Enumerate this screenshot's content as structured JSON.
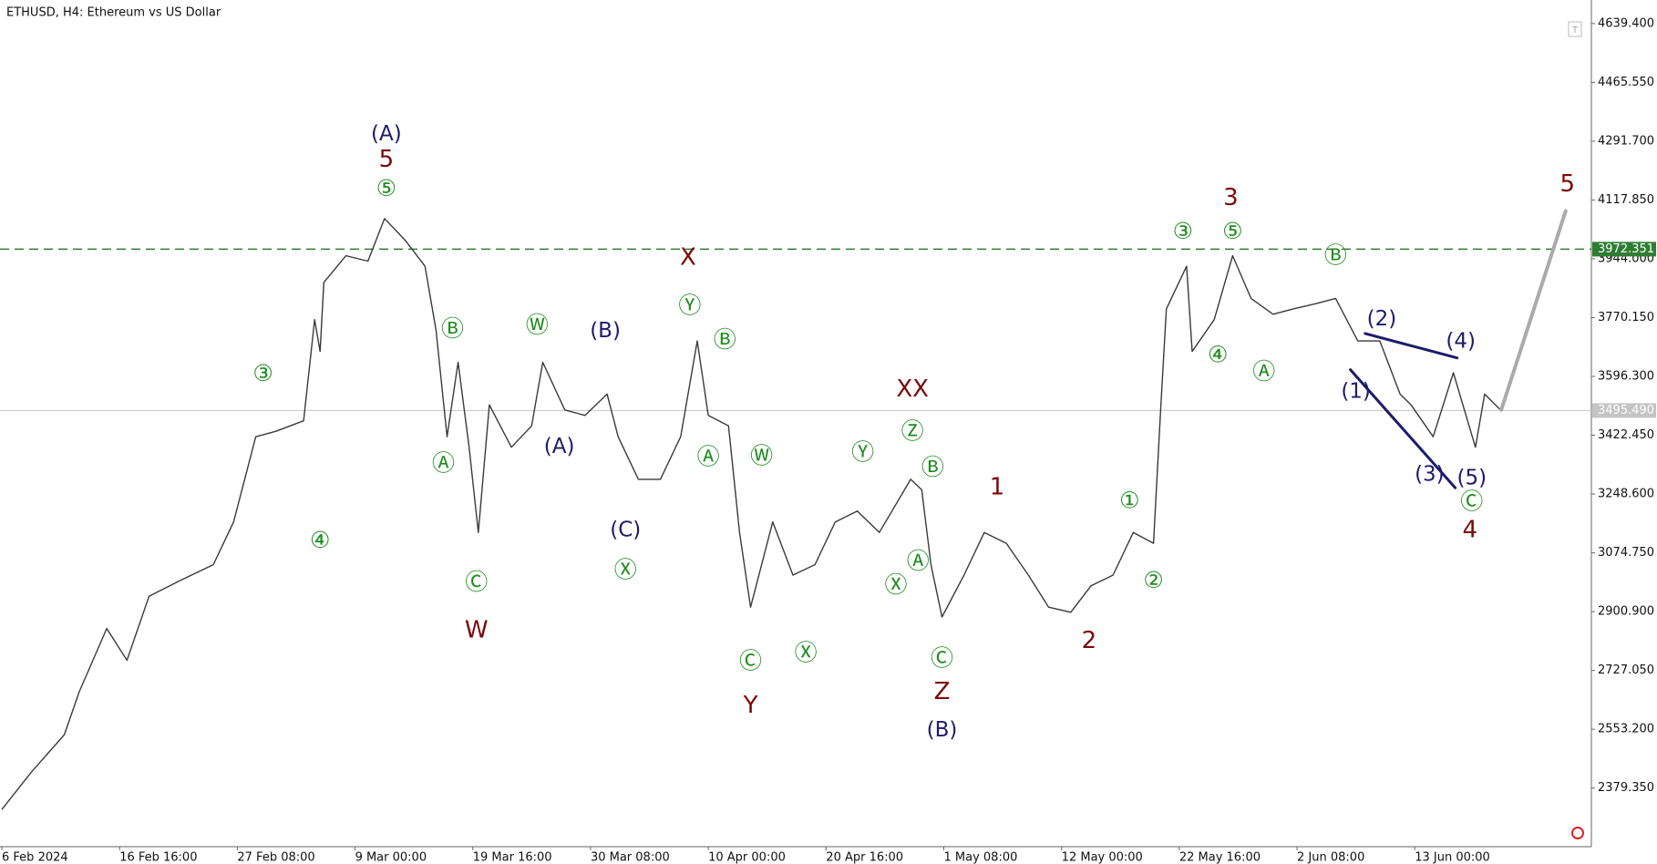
{
  "chart_data": {
    "type": "line",
    "title": "ETHUSD, H4:  Ethereum vs US Dollar",
    "xlim": [
      -1,
      864
    ],
    "xticks": [
      {
        "value": 0,
        "label": "6 Feb 2024"
      },
      {
        "value": 64,
        "label": "16 Feb 16:00"
      },
      {
        "value": 128,
        "label": "27 Feb 08:00"
      },
      {
        "value": 192,
        "label": "9 Mar 00:00"
      },
      {
        "value": 256,
        "label": "19 Mar 16:00"
      },
      {
        "value": 320,
        "label": "30 Mar 08:00"
      },
      {
        "value": 384,
        "label": "10 Apr 00:00"
      },
      {
        "value": 448,
        "label": "20 Apr 16:00"
      },
      {
        "value": 512,
        "label": "1 May 08:00"
      },
      {
        "value": 576,
        "label": "12 May 00:00"
      },
      {
        "value": 640,
        "label": "22 May 16:00"
      },
      {
        "value": 704,
        "label": "2 Jun 08:00"
      },
      {
        "value": 768,
        "label": "13 Jun 00:00"
      }
    ],
    "ylim": [
      2206,
      4709
    ],
    "yticks": [
      {
        "value": 4639.4,
        "label": "4639.400"
      },
      {
        "value": 4465.55,
        "label": "4465.550"
      },
      {
        "value": 4291.7,
        "label": "4291.700"
      },
      {
        "value": 4117.85,
        "label": "4117.850"
      },
      {
        "value": 3944,
        "label": "3944.000"
      },
      {
        "value": 3770.15,
        "label": "3770.150"
      },
      {
        "value": 3596.3,
        "label": "3596.300"
      },
      {
        "value": 3422.45,
        "label": "3422.450"
      },
      {
        "value": 3248.6,
        "label": "3248.600"
      },
      {
        "value": 3074.75,
        "label": "3074.750"
      },
      {
        "value": 2900.9,
        "label": "2900.900"
      },
      {
        "value": 2727.05,
        "label": "2727.050"
      },
      {
        "value": 2553.2,
        "label": "2553.200"
      },
      {
        "value": 2379.35,
        "label": "2379.350"
      }
    ],
    "series": [
      {
        "color": "#3a3a3a",
        "x": [
          0,
          16,
          34,
          42,
          57,
          68,
          80,
          97,
          115,
          126,
          138,
          149,
          164,
          170,
          173,
          175,
          187,
          199,
          208,
          219,
          230,
          236,
          242,
          248,
          254,
          259,
          265,
          277,
          288,
          294,
          306,
          317,
          329,
          335,
          346,
          358,
          369,
          378,
          384,
          395,
          401,
          407,
          419,
          430,
          442,
          453,
          465,
          477,
          494,
          500,
          505,
          511,
          523,
          534,
          546,
          558,
          569,
          581,
          592,
          604,
          615,
          626,
          630,
          633,
          644,
          647,
          659,
          669,
          679,
          691,
          702,
          714,
          725,
          737,
          749,
          760,
          766,
          778,
          789,
          801,
          806,
          815
        ],
        "values": [
          2316,
          2426,
          2537,
          2663,
          2851,
          2757,
          2946,
          2993,
          3040,
          3166,
          3418,
          3434,
          3465,
          3764,
          3670,
          3874,
          3953,
          3937,
          4063,
          4000,
          3922,
          3733,
          3418,
          3638,
          3387,
          3135,
          3512,
          3387,
          3450,
          3638,
          3497,
          3481,
          3544,
          3418,
          3292,
          3292,
          3418,
          3701,
          3481,
          3450,
          3135,
          2914,
          3166,
          3009,
          3040,
          3166,
          3198,
          3135,
          3292,
          3261,
          3040,
          2885,
          3009,
          3135,
          3103,
          3009,
          2914,
          2899,
          2977,
          3009,
          3135,
          3103,
          3512,
          3796,
          3922,
          3670,
          3764,
          3953,
          3827,
          3780,
          3796,
          3811,
          3827,
          3701,
          3701,
          3544,
          3512,
          3418,
          3607,
          3387,
          3544,
          3495
        ]
      }
    ],
    "price_lines": [
      {
        "value": 3972.351,
        "label": "3972.351",
        "color": "#2e7d32",
        "style": "dashed"
      },
      {
        "value": 3495.49,
        "label": "3495.490",
        "color": "#c4c4c4",
        "style": "solid"
      }
    ],
    "trend_lines": [
      {
        "x": [
          741,
          791
        ],
        "values": [
          3723,
          3651
        ],
        "color": "#1c1c6b"
      },
      {
        "x": [
          733,
          790
        ],
        "values": [
          3616,
          3267
        ],
        "color": "#1c1c6b"
      },
      {
        "x": [
          815,
          850
        ],
        "values": [
          3497,
          4085
        ],
        "color": "#aaaaaa"
      }
    ],
    "annotations": [
      {
        "text": "(A)",
        "x": 209,
        "y": 4312,
        "color": "#1c1c6b"
      },
      {
        "text": "5",
        "x": 209,
        "y": 4236,
        "color": "#7a0a0a"
      },
      {
        "text": "⑤",
        "x": 209,
        "y": 4148,
        "color": "#1e8c1e"
      },
      {
        "text": "③",
        "x": 142,
        "y": 3601,
        "color": "#1e8c1e"
      },
      {
        "text": "④",
        "x": 173,
        "y": 3109,
        "color": "#1e8c1e"
      },
      {
        "text": "Ⓑ",
        "x": 245,
        "y": 3733,
        "color": "#1e8c1e"
      },
      {
        "text": "Ⓐ",
        "x": 240,
        "y": 3336,
        "color": "#1e8c1e"
      },
      {
        "text": "Ⓒ",
        "x": 258,
        "y": 2984,
        "color": "#1e8c1e"
      },
      {
        "text": "W",
        "x": 258,
        "y": 2845,
        "color": "#7a0a0a"
      },
      {
        "text": "Ⓦ",
        "x": 291,
        "y": 3745,
        "color": "#1e8c1e"
      },
      {
        "text": "(A)",
        "x": 303,
        "y": 3387,
        "color": "#1c1c6b"
      },
      {
        "text": "(B)",
        "x": 328,
        "y": 3730,
        "color": "#1c1c6b"
      },
      {
        "text": "(C)",
        "x": 339,
        "y": 3141,
        "color": "#1c1c6b"
      },
      {
        "text": "Ⓧ",
        "x": 339,
        "y": 3021,
        "color": "#1e8c1e"
      },
      {
        "text": "X",
        "x": 373,
        "y": 3947,
        "color": "#7a0a0a"
      },
      {
        "text": "Ⓨ",
        "x": 374,
        "y": 3802,
        "color": "#1e8c1e"
      },
      {
        "text": "Ⓑ",
        "x": 393,
        "y": 3701,
        "color": "#1e8c1e"
      },
      {
        "text": "Ⓐ",
        "x": 384,
        "y": 3355,
        "color": "#1e8c1e"
      },
      {
        "text": "Ⓦ",
        "x": 413,
        "y": 3358,
        "color": "#1e8c1e"
      },
      {
        "text": "Ⓒ",
        "x": 407,
        "y": 2751,
        "color": "#1e8c1e"
      },
      {
        "text": "Y",
        "x": 407,
        "y": 2622,
        "color": "#7a0a0a"
      },
      {
        "text": "Ⓧ",
        "x": 437,
        "y": 2776,
        "color": "#1e8c1e"
      },
      {
        "text": "Ⓨ",
        "x": 468,
        "y": 3368,
        "color": "#1e8c1e"
      },
      {
        "text": "XX",
        "x": 495,
        "y": 3557,
        "color": "#7a0a0a"
      },
      {
        "text": "Ⓩ",
        "x": 495,
        "y": 3431,
        "color": "#1e8c1e"
      },
      {
        "text": "Ⓑ",
        "x": 506,
        "y": 3324,
        "color": "#1e8c1e"
      },
      {
        "text": "Ⓐ",
        "x": 498,
        "y": 3047,
        "color": "#1e8c1e"
      },
      {
        "text": "Ⓧ",
        "x": 486,
        "y": 2977,
        "color": "#1e8c1e"
      },
      {
        "text": "Ⓒ",
        "x": 511,
        "y": 2760,
        "color": "#1e8c1e"
      },
      {
        "text": "Z",
        "x": 511,
        "y": 2663,
        "color": "#7a0a0a"
      },
      {
        "text": "(B)",
        "x": 511,
        "y": 2549,
        "color": "#1c1c6b"
      },
      {
        "text": "1",
        "x": 541,
        "y": 3267,
        "color": "#7a0a0a"
      },
      {
        "text": "2",
        "x": 591,
        "y": 2814,
        "color": "#7a0a0a"
      },
      {
        "text": "①",
        "x": 613,
        "y": 3226,
        "color": "#1e8c1e"
      },
      {
        "text": "②",
        "x": 626,
        "y": 2990,
        "color": "#1e8c1e"
      },
      {
        "text": "③",
        "x": 642,
        "y": 4022,
        "color": "#1e8c1e"
      },
      {
        "text": "3",
        "x": 668,
        "y": 4123,
        "color": "#7a0a0a"
      },
      {
        "text": "⑤",
        "x": 669,
        "y": 4022,
        "color": "#1e8c1e"
      },
      {
        "text": "④",
        "x": 661,
        "y": 3657,
        "color": "#1e8c1e"
      },
      {
        "text": "Ⓐ",
        "x": 686,
        "y": 3607,
        "color": "#1e8c1e"
      },
      {
        "text": "Ⓑ",
        "x": 725,
        "y": 3950,
        "color": "#1e8c1e"
      },
      {
        "text": "(2)",
        "x": 750,
        "y": 3764,
        "color": "#1c1c6b"
      },
      {
        "text": "(4)",
        "x": 793,
        "y": 3698,
        "color": "#1c1c6b"
      },
      {
        "text": "(1)",
        "x": 736,
        "y": 3550,
        "color": "#1c1c6b"
      },
      {
        "text": "(3)",
        "x": 776,
        "y": 3305,
        "color": "#1c1c6b"
      },
      {
        "text": "(5)",
        "x": 799,
        "y": 3295,
        "color": "#1c1c6b"
      },
      {
        "text": "Ⓒ",
        "x": 799,
        "y": 3223,
        "color": "#1e8c1e"
      },
      {
        "text": "4",
        "x": 798,
        "y": 3141,
        "color": "#7a0a0a"
      },
      {
        "text": "5",
        "x": 851,
        "y": 4164,
        "color": "#7a0a0a"
      }
    ]
  }
}
